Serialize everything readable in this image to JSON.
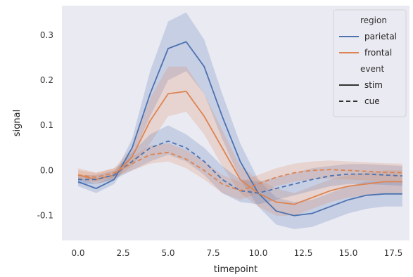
{
  "chart_data": {
    "type": "line",
    "xlabel": "timepoint",
    "ylabel": "signal",
    "xlim": [
      -0.9,
      18.4
    ],
    "ylim": [
      -0.155,
      0.365
    ],
    "xticks": [
      0.0,
      2.5,
      5.0,
      7.5,
      10.0,
      12.5,
      15.0,
      17.5
    ],
    "xtick_labels": [
      "0.0",
      "2.5",
      "5.0",
      "7.5",
      "10.0",
      "12.5",
      "15.0",
      "17.5"
    ],
    "yticks": [
      -0.1,
      0.0,
      0.1,
      0.2,
      0.3
    ],
    "ytick_labels": [
      "-0.1",
      "0.0",
      "0.1",
      "0.2",
      "0.3"
    ],
    "grid": false,
    "background": "#eaeaf2",
    "legend_placement": "top-right",
    "legend": {
      "hue_title": "region",
      "style_title": "event",
      "hue_entries": [
        {
          "label": "parietal",
          "color": "#4c72b0"
        },
        {
          "label": "frontal",
          "color": "#dd8452"
        }
      ],
      "style_entries": [
        {
          "label": "stim",
          "dash": "solid"
        },
        {
          "label": "cue",
          "dash": "dashed"
        }
      ]
    },
    "x": [
      0,
      1,
      2,
      3,
      4,
      5,
      6,
      7,
      8,
      9,
      10,
      11,
      12,
      13,
      14,
      15,
      16,
      17,
      18
    ],
    "series": [
      {
        "region": "parietal",
        "event": "stim",
        "color": "#4c72b0",
        "dash": "solid",
        "values": [
          -0.025,
          -0.04,
          -0.02,
          0.05,
          0.17,
          0.27,
          0.285,
          0.23,
          0.12,
          0.02,
          -0.05,
          -0.09,
          -0.1,
          -0.095,
          -0.08,
          -0.065,
          -0.055,
          -0.052,
          -0.052
        ],
        "ci_low": [
          -0.035,
          -0.05,
          -0.03,
          0.03,
          0.12,
          0.2,
          0.22,
          0.17,
          0.07,
          -0.02,
          -0.08,
          -0.12,
          -0.13,
          -0.125,
          -0.11,
          -0.095,
          -0.085,
          -0.08,
          -0.08
        ],
        "ci_high": [
          -0.015,
          -0.03,
          -0.01,
          0.07,
          0.22,
          0.33,
          0.35,
          0.29,
          0.17,
          0.06,
          -0.02,
          -0.06,
          -0.07,
          -0.065,
          -0.05,
          -0.035,
          -0.025,
          -0.024,
          -0.024
        ]
      },
      {
        "region": "frontal",
        "event": "stim",
        "color": "#dd8452",
        "dash": "solid",
        "values": [
          -0.01,
          -0.02,
          -0.01,
          0.03,
          0.11,
          0.17,
          0.175,
          0.12,
          0.05,
          -0.02,
          -0.05,
          -0.07,
          -0.075,
          -0.06,
          -0.045,
          -0.035,
          -0.03,
          -0.025,
          -0.025
        ],
        "ci_low": [
          -0.02,
          -0.03,
          -0.02,
          0.01,
          0.06,
          0.12,
          0.13,
          0.08,
          0.01,
          -0.05,
          -0.08,
          -0.1,
          -0.1,
          -0.085,
          -0.07,
          -0.06,
          -0.055,
          -0.05,
          -0.05
        ],
        "ci_high": [
          0.005,
          -0.005,
          0.005,
          0.05,
          0.16,
          0.23,
          0.23,
          0.17,
          0.09,
          0.01,
          -0.02,
          -0.04,
          -0.05,
          -0.035,
          -0.02,
          -0.01,
          -0.005,
          0.0,
          0.0
        ]
      },
      {
        "region": "parietal",
        "event": "cue",
        "color": "#4c72b0",
        "dash": "dashed",
        "values": [
          -0.02,
          -0.02,
          -0.01,
          0.02,
          0.05,
          0.065,
          0.05,
          0.02,
          -0.02,
          -0.045,
          -0.05,
          -0.04,
          -0.03,
          -0.02,
          -0.012,
          -0.008,
          -0.008,
          -0.01,
          -0.012
        ],
        "ci_low": [
          -0.03,
          -0.03,
          -0.02,
          0.0,
          0.02,
          0.035,
          0.02,
          -0.01,
          -0.05,
          -0.07,
          -0.075,
          -0.065,
          -0.055,
          -0.045,
          -0.035,
          -0.03,
          -0.03,
          -0.032,
          -0.034
        ],
        "ci_high": [
          -0.01,
          -0.01,
          0.0,
          0.04,
          0.08,
          0.1,
          0.08,
          0.05,
          0.01,
          -0.02,
          -0.025,
          -0.015,
          -0.005,
          0.005,
          0.01,
          0.014,
          0.014,
          0.012,
          0.01
        ]
      },
      {
        "region": "frontal",
        "event": "cue",
        "color": "#dd8452",
        "dash": "dashed",
        "values": [
          -0.01,
          -0.015,
          -0.005,
          0.015,
          0.035,
          0.04,
          0.025,
          0.0,
          -0.03,
          -0.045,
          -0.03,
          -0.015,
          -0.005,
          0.0,
          0.002,
          0.0,
          -0.002,
          -0.004,
          -0.005
        ],
        "ci_low": [
          -0.02,
          -0.025,
          -0.015,
          0.0,
          0.015,
          0.02,
          0.005,
          -0.02,
          -0.05,
          -0.065,
          -0.05,
          -0.035,
          -0.025,
          -0.02,
          -0.018,
          -0.02,
          -0.022,
          -0.024,
          -0.025
        ],
        "ci_high": [
          0.0,
          -0.005,
          0.005,
          0.03,
          0.055,
          0.06,
          0.045,
          0.02,
          -0.01,
          -0.025,
          -0.01,
          0.005,
          0.015,
          0.02,
          0.022,
          0.02,
          0.018,
          0.016,
          0.015
        ]
      }
    ]
  }
}
